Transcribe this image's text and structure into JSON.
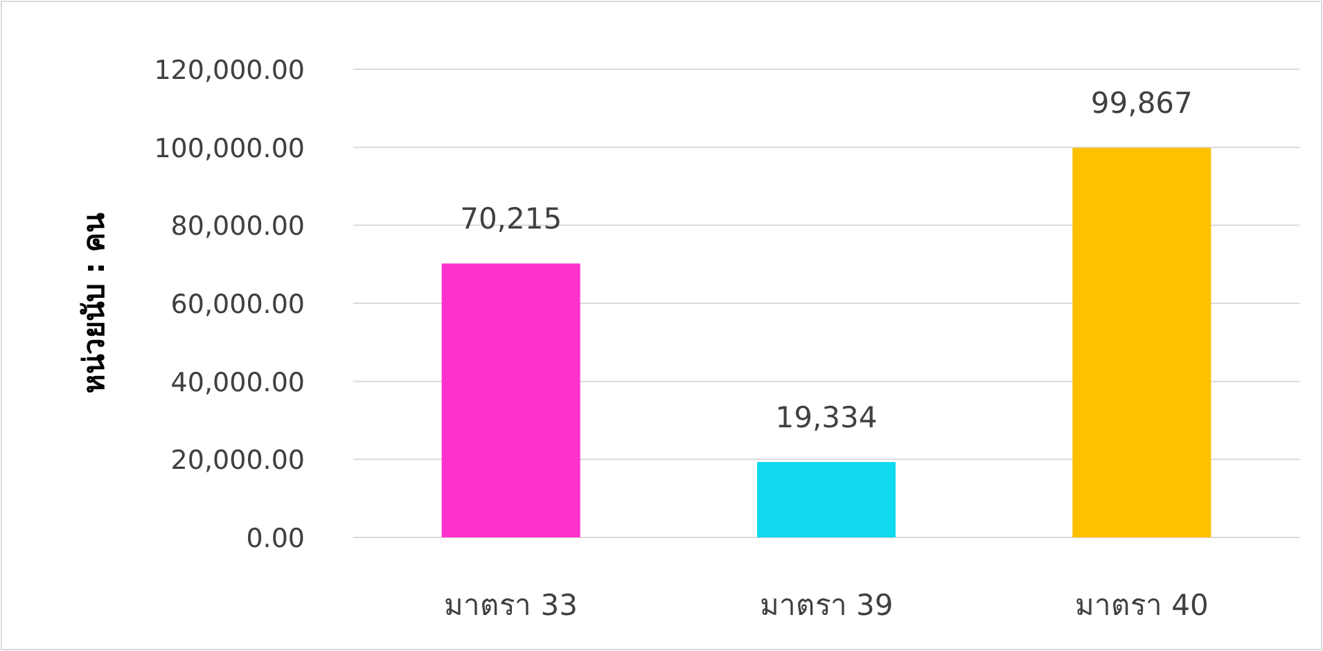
{
  "chart_data": {
    "type": "bar",
    "ylabel": "หน่วยนับ : คน",
    "categories": [
      "มาตรา 33",
      "มาตรา 39",
      "มาตรา 40"
    ],
    "values": [
      70215,
      19334,
      99867
    ],
    "colors": [
      "#ff33cc",
      "#11d9ee",
      "#ffc000"
    ],
    "ylim": [
      0,
      120000
    ],
    "yticks": [
      {
        "value": 0,
        "label": "0.00"
      },
      {
        "value": 20000,
        "label": "20,000.00"
      },
      {
        "value": 40000,
        "label": "40,000.00"
      },
      {
        "value": 60000,
        "label": "60,000.00"
      },
      {
        "value": 80000,
        "label": "80,000.00"
      },
      {
        "value": 100000,
        "label": "100,000.00"
      },
      {
        "value": 120000,
        "label": "120,000.00"
      }
    ],
    "value_labels": [
      "70,215",
      "19,334",
      "99,867"
    ],
    "grid": "y"
  }
}
